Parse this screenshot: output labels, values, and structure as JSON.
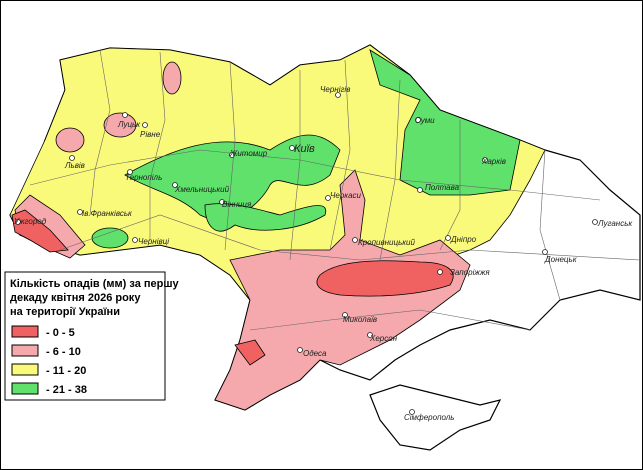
{
  "legend": {
    "title_lines": [
      "Кількість опадів (мм) за першу",
      "декаду квітня 2026 року",
      "на території України"
    ],
    "items": [
      {
        "label": "- 0 - 5",
        "color": "#f06262"
      },
      {
        "label": "- 6 - 10",
        "color": "#f5a9ad"
      },
      {
        "label": "- 11 - 20",
        "color": "#fafa7a"
      },
      {
        "label": "- 21 - 38",
        "color": "#5fe16b"
      }
    ]
  },
  "cities": [
    "Луцьк",
    "Рівне",
    "Житомир",
    "Київ",
    "Чернігів",
    "Суми",
    "Харків",
    "Полтава",
    "Черкаси",
    "Вінниця",
    "Хмельницький",
    "Тернопіль",
    "Львів",
    "Ужгород",
    "Ів.Франківськ",
    "Чернівці",
    "Кропивницький",
    "Дніпро",
    "Запоріжжя",
    "Донецьк",
    "Луганськ",
    "Миколаїв",
    "Херсон",
    "Одеса",
    "Сімферополь"
  ]
}
